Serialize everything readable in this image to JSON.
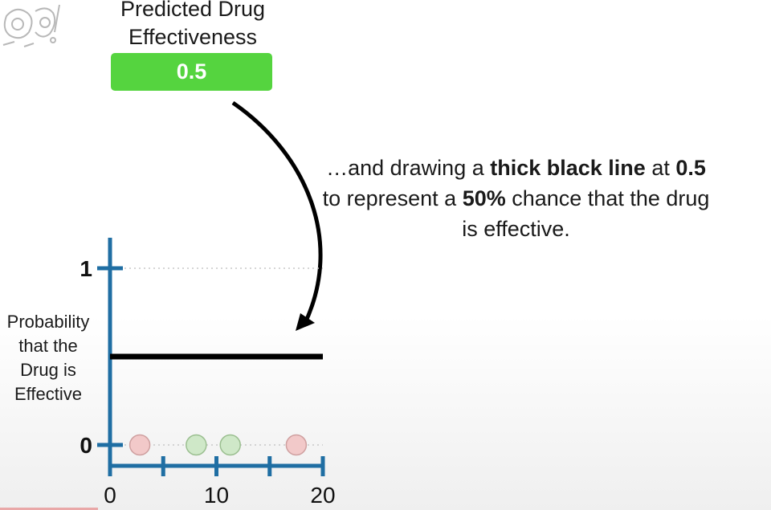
{
  "header": {
    "title_line1": "Predicted Drug",
    "title_line2": "Effectiveness"
  },
  "prediction": {
    "value": "0.5",
    "box_color": "#55d43f"
  },
  "caption": {
    "p1": "…and drawing a ",
    "b1": "thick black line",
    "p2": " at ",
    "b2": "0.5",
    "p3": " to represent a ",
    "b3": "50%",
    "p4": " chance that the drug is effective."
  },
  "y_axis_label": [
    "Probability",
    "that the",
    "Drug is",
    "Effective"
  ],
  "colors": {
    "axis": "#1f6ea3",
    "line": "#000000",
    "ineffective_point": "#f2c9c9",
    "effective_point": "#cfe8c8"
  },
  "chart_data": {
    "type": "scatter",
    "title": "",
    "xlabel": "",
    "ylabel": "Probability that the Drug is Effective",
    "xlim": [
      0,
      20
    ],
    "ylim": [
      0,
      1
    ],
    "x_ticks": [
      0,
      5,
      10,
      15,
      20
    ],
    "x_tick_labels": [
      "0",
      "10",
      "20"
    ],
    "x_tick_label_values": [
      0,
      10,
      20
    ],
    "y_tick_labels": [
      "0",
      "1"
    ],
    "y_tick_label_values": [
      0,
      1
    ],
    "grid": "dotted at y=0 and y=1",
    "points": [
      {
        "x": 2.8,
        "y": 0,
        "effective": false
      },
      {
        "x": 8.1,
        "y": 0,
        "effective": true
      },
      {
        "x": 11.3,
        "y": 0,
        "effective": true
      },
      {
        "x": 17.5,
        "y": 0,
        "effective": false
      }
    ],
    "prediction_line": {
      "y": 0.5,
      "x_range": [
        0,
        20
      ]
    }
  }
}
